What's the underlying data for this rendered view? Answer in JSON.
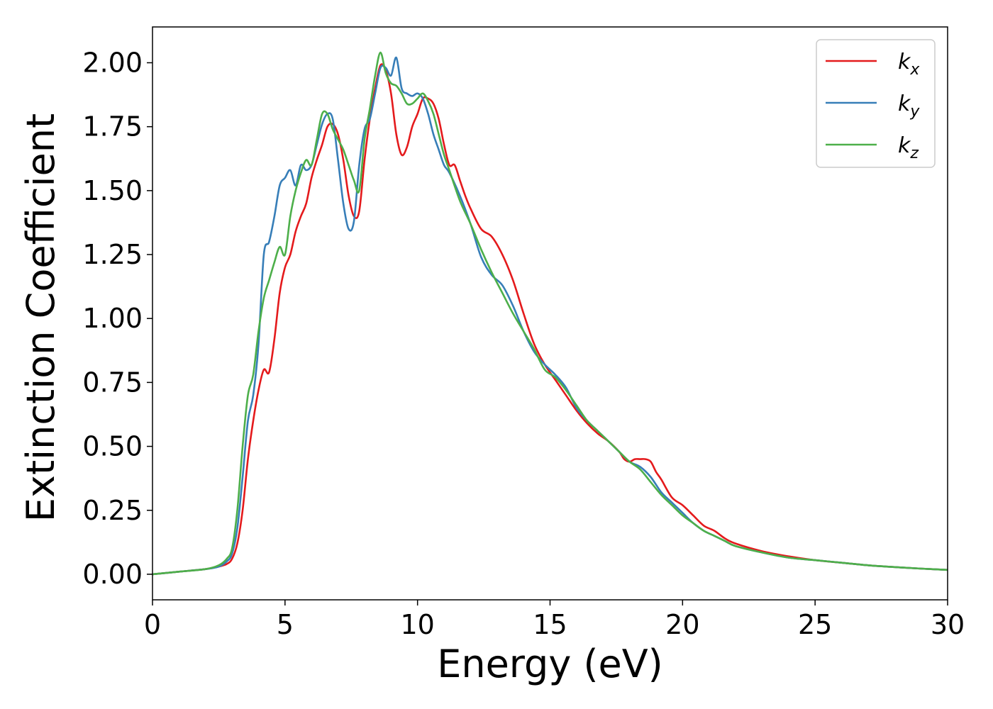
{
  "chart_data": {
    "type": "line",
    "title": "",
    "xlabel": "Energy (eV)",
    "ylabel": "Extinction Coefficient",
    "xlim": [
      0,
      30
    ],
    "ylim": [
      -0.1,
      2.14
    ],
    "xticks": [
      0,
      5,
      10,
      15,
      20,
      25,
      30
    ],
    "xtick_labels": [
      "0",
      "5",
      "10",
      "15",
      "20",
      "25",
      "30"
    ],
    "yticks": [
      0.0,
      0.25,
      0.5,
      0.75,
      1.0,
      1.25,
      1.5,
      1.75,
      2.0
    ],
    "ytick_labels": [
      "0.00",
      "0.25",
      "0.50",
      "0.75",
      "1.00",
      "1.25",
      "1.50",
      "1.75",
      "2.00"
    ],
    "grid": false,
    "legend_position": "top-right",
    "series": [
      {
        "name": "k",
        "subscript": "x",
        "color": "#e41a1c",
        "x": [
          0,
          1,
          2,
          2.5,
          2.8,
          3.0,
          3.2,
          3.4,
          3.6,
          3.8,
          4.0,
          4.2,
          4.4,
          4.6,
          4.8,
          5.0,
          5.2,
          5.4,
          5.6,
          5.8,
          6.0,
          6.2,
          6.4,
          6.6,
          6.8,
          7.0,
          7.2,
          7.4,
          7.6,
          7.8,
          8.0,
          8.2,
          8.4,
          8.6,
          8.8,
          9.0,
          9.2,
          9.4,
          9.6,
          9.8,
          10.0,
          10.2,
          10.4,
          10.6,
          10.8,
          11.0,
          11.2,
          11.4,
          11.6,
          11.8,
          12.0,
          12.4,
          12.8,
          13.2,
          13.6,
          14.0,
          14.4,
          14.8,
          15.2,
          15.6,
          16.0,
          16.4,
          16.8,
          17.2,
          17.6,
          17.8,
          18.0,
          18.2,
          18.4,
          18.6,
          18.8,
          19.0,
          19.2,
          19.6,
          20.0,
          20.4,
          20.8,
          21.2,
          21.6,
          22.0,
          23.0,
          24.0,
          25.0,
          26.0,
          27.0,
          28.0,
          29.0,
          30.0
        ],
        "y": [
          0.0,
          0.01,
          0.02,
          0.03,
          0.04,
          0.06,
          0.12,
          0.25,
          0.45,
          0.6,
          0.72,
          0.8,
          0.79,
          0.92,
          1.1,
          1.2,
          1.25,
          1.34,
          1.4,
          1.45,
          1.55,
          1.62,
          1.68,
          1.75,
          1.76,
          1.72,
          1.62,
          1.48,
          1.4,
          1.42,
          1.62,
          1.78,
          1.9,
          1.99,
          1.97,
          1.88,
          1.72,
          1.64,
          1.67,
          1.75,
          1.8,
          1.86,
          1.86,
          1.84,
          1.78,
          1.68,
          1.6,
          1.6,
          1.54,
          1.48,
          1.43,
          1.35,
          1.32,
          1.25,
          1.15,
          1.02,
          0.9,
          0.82,
          0.76,
          0.7,
          0.64,
          0.59,
          0.55,
          0.52,
          0.48,
          0.45,
          0.44,
          0.45,
          0.45,
          0.45,
          0.44,
          0.4,
          0.37,
          0.3,
          0.27,
          0.23,
          0.19,
          0.17,
          0.14,
          0.12,
          0.09,
          0.07,
          0.055,
          0.045,
          0.035,
          0.028,
          0.022,
          0.017
        ]
      },
      {
        "name": "k",
        "subscript": "y",
        "color": "#377eb8",
        "x": [
          0,
          1,
          2,
          2.5,
          2.8,
          3.0,
          3.2,
          3.4,
          3.6,
          3.8,
          4.0,
          4.2,
          4.4,
          4.6,
          4.8,
          5.0,
          5.2,
          5.4,
          5.6,
          5.8,
          6.0,
          6.2,
          6.4,
          6.6,
          6.8,
          7.0,
          7.2,
          7.4,
          7.6,
          7.8,
          8.0,
          8.2,
          8.4,
          8.6,
          8.8,
          9.0,
          9.2,
          9.4,
          9.6,
          9.8,
          10.0,
          10.2,
          10.4,
          10.6,
          10.8,
          11.0,
          11.2,
          11.6,
          12.0,
          12.4,
          12.8,
          13.2,
          13.6,
          14.0,
          14.4,
          14.8,
          15.2,
          15.6,
          16.0,
          16.4,
          16.8,
          17.2,
          17.6,
          18.0,
          18.4,
          18.8,
          19.2,
          19.6,
          20.0,
          20.4,
          20.8,
          21.2,
          21.6,
          22.0,
          23.0,
          24.0,
          25.0,
          26.0,
          27.0,
          28.0,
          29.0,
          30.0
        ],
        "y": [
          0.0,
          0.01,
          0.02,
          0.03,
          0.05,
          0.08,
          0.18,
          0.38,
          0.6,
          0.7,
          0.9,
          1.25,
          1.3,
          1.4,
          1.52,
          1.55,
          1.58,
          1.52,
          1.6,
          1.58,
          1.6,
          1.68,
          1.76,
          1.8,
          1.78,
          1.62,
          1.45,
          1.35,
          1.38,
          1.6,
          1.74,
          1.78,
          1.88,
          1.98,
          1.98,
          1.95,
          2.02,
          1.9,
          1.88,
          1.87,
          1.88,
          1.86,
          1.8,
          1.72,
          1.66,
          1.6,
          1.57,
          1.48,
          1.37,
          1.24,
          1.17,
          1.13,
          1.05,
          0.95,
          0.87,
          0.82,
          0.78,
          0.73,
          0.65,
          0.6,
          0.56,
          0.52,
          0.48,
          0.44,
          0.42,
          0.38,
          0.32,
          0.28,
          0.24,
          0.2,
          0.17,
          0.15,
          0.13,
          0.11,
          0.085,
          0.065,
          0.055,
          0.045,
          0.035,
          0.028,
          0.022,
          0.017
        ]
      },
      {
        "name": "k",
        "subscript": "z",
        "color": "#4daf4a",
        "x": [
          0,
          1,
          2,
          2.5,
          2.8,
          3.0,
          3.2,
          3.4,
          3.6,
          3.8,
          4.0,
          4.2,
          4.4,
          4.6,
          4.8,
          5.0,
          5.2,
          5.4,
          5.6,
          5.8,
          6.0,
          6.2,
          6.4,
          6.6,
          6.8,
          7.0,
          7.2,
          7.4,
          7.6,
          7.8,
          8.0,
          8.2,
          8.4,
          8.6,
          8.8,
          9.0,
          9.2,
          9.4,
          9.6,
          9.8,
          10.0,
          10.2,
          10.4,
          10.6,
          10.8,
          11.0,
          11.2,
          11.6,
          12.0,
          12.4,
          12.8,
          13.2,
          13.6,
          14.0,
          14.4,
          14.8,
          15.2,
          15.6,
          16.0,
          16.4,
          16.8,
          17.2,
          17.6,
          18.0,
          18.4,
          18.8,
          19.2,
          19.6,
          20.0,
          20.4,
          20.8,
          21.2,
          21.6,
          22.0,
          23.0,
          24.0,
          25.0,
          26.0,
          27.0,
          28.0,
          29.0,
          30.0
        ],
        "y": [
          0.0,
          0.01,
          0.02,
          0.035,
          0.06,
          0.1,
          0.25,
          0.5,
          0.7,
          0.78,
          0.95,
          1.08,
          1.15,
          1.22,
          1.28,
          1.25,
          1.4,
          1.5,
          1.57,
          1.62,
          1.6,
          1.7,
          1.8,
          1.8,
          1.74,
          1.7,
          1.66,
          1.6,
          1.54,
          1.5,
          1.7,
          1.82,
          1.95,
          2.04,
          1.96,
          1.92,
          1.91,
          1.88,
          1.84,
          1.84,
          1.86,
          1.88,
          1.85,
          1.8,
          1.72,
          1.64,
          1.58,
          1.46,
          1.37,
          1.27,
          1.18,
          1.1,
          1.02,
          0.95,
          0.88,
          0.8,
          0.77,
          0.72,
          0.66,
          0.6,
          0.56,
          0.52,
          0.48,
          0.44,
          0.41,
          0.36,
          0.31,
          0.27,
          0.23,
          0.2,
          0.17,
          0.15,
          0.13,
          0.11,
          0.085,
          0.065,
          0.055,
          0.045,
          0.035,
          0.028,
          0.022,
          0.017
        ]
      }
    ]
  }
}
